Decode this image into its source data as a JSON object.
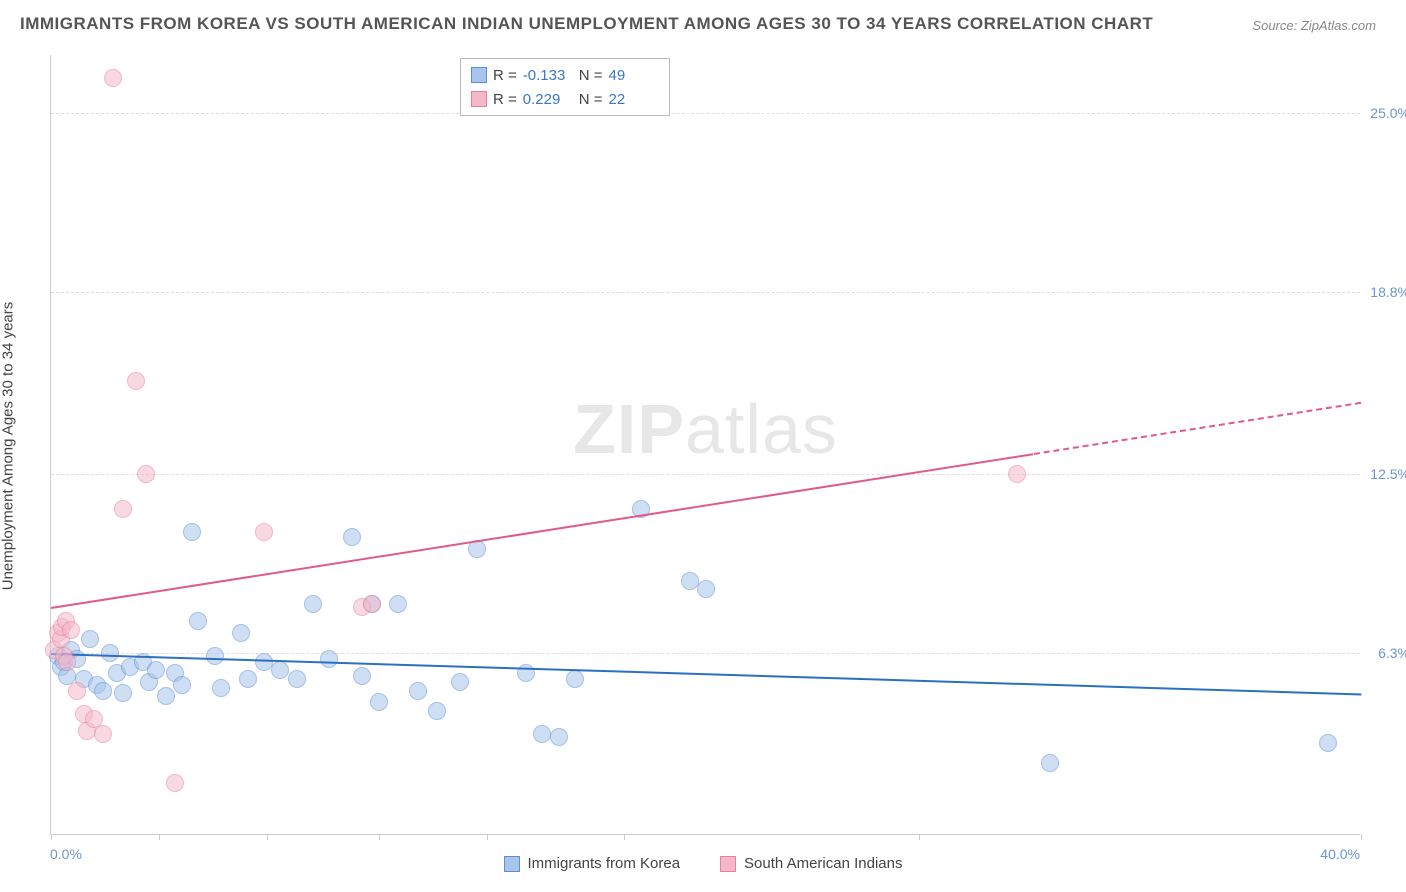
{
  "title": "IMMIGRANTS FROM KOREA VS SOUTH AMERICAN INDIAN UNEMPLOYMENT AMONG AGES 30 TO 34 YEARS CORRELATION CHART",
  "source_label": "Source:",
  "source_value": "ZipAtlas.com",
  "watermark_a": "ZIP",
  "watermark_b": "atlas",
  "chart": {
    "type": "scatter",
    "ylabel": "Unemployment Among Ages 30 to 34 years",
    "xlim": [
      0,
      40
    ],
    "ylim": [
      0,
      27
    ],
    "xtick_positions": [
      0,
      3.3,
      6.6,
      10,
      13.3,
      17.5,
      26.5,
      40
    ],
    "x_start_label": "0.0%",
    "x_end_label": "40.0%",
    "yticks": [
      {
        "v": 6.3,
        "label": "6.3%"
      },
      {
        "v": 12.5,
        "label": "12.5%"
      },
      {
        "v": 18.8,
        "label": "18.8%"
      },
      {
        "v": 25.0,
        "label": "25.0%"
      }
    ],
    "background_color": "#ffffff",
    "grid_color": "#dddddd",
    "axis_color": "#cccccc",
    "tick_label_color": "#6b95d4",
    "point_radius": 9,
    "point_opacity": 0.55,
    "series": [
      {
        "name": "Immigrants from Korea",
        "fill": "#a7c5ec",
        "stroke": "#5a8fd6",
        "trend_color": "#2d6fc1",
        "r": -0.133,
        "n": 49,
        "trend": {
          "x1": 0,
          "y1": 6.3,
          "x2": 40,
          "y2": 4.9,
          "dashed_from": 40
        },
        "points": [
          [
            0.2,
            6.2
          ],
          [
            0.3,
            5.8
          ],
          [
            0.4,
            6.0
          ],
          [
            0.5,
            5.5
          ],
          [
            0.6,
            6.4
          ],
          [
            0.8,
            6.1
          ],
          [
            1.0,
            5.4
          ],
          [
            1.2,
            6.8
          ],
          [
            1.4,
            5.2
          ],
          [
            1.6,
            5.0
          ],
          [
            1.8,
            6.3
          ],
          [
            2.0,
            5.6
          ],
          [
            2.2,
            4.9
          ],
          [
            2.4,
            5.8
          ],
          [
            2.8,
            6.0
          ],
          [
            3.0,
            5.3
          ],
          [
            3.2,
            5.7
          ],
          [
            3.5,
            4.8
          ],
          [
            3.8,
            5.6
          ],
          [
            4.0,
            5.2
          ],
          [
            4.3,
            10.5
          ],
          [
            4.5,
            7.4
          ],
          [
            5.0,
            6.2
          ],
          [
            5.2,
            5.1
          ],
          [
            5.8,
            7.0
          ],
          [
            6.0,
            5.4
          ],
          [
            6.5,
            6.0
          ],
          [
            7.0,
            5.7
          ],
          [
            7.5,
            5.4
          ],
          [
            8.0,
            8.0
          ],
          [
            8.5,
            6.1
          ],
          [
            9.2,
            10.3
          ],
          [
            9.5,
            5.5
          ],
          [
            9.8,
            8.0
          ],
          [
            10.0,
            4.6
          ],
          [
            10.6,
            8.0
          ],
          [
            11.2,
            5.0
          ],
          [
            11.8,
            4.3
          ],
          [
            12.5,
            5.3
          ],
          [
            13.0,
            9.9
          ],
          [
            14.5,
            5.6
          ],
          [
            15.0,
            3.5
          ],
          [
            15.5,
            3.4
          ],
          [
            16.0,
            5.4
          ],
          [
            18.0,
            11.3
          ],
          [
            19.5,
            8.8
          ],
          [
            20.0,
            8.5
          ],
          [
            30.5,
            2.5
          ],
          [
            39.0,
            3.2
          ]
        ]
      },
      {
        "name": "South American Indians",
        "fill": "#f4b9c9",
        "stroke": "#e97ea0",
        "trend_color": "#e05a8a",
        "r": 0.229,
        "n": 22,
        "trend": {
          "x1": 0,
          "y1": 7.9,
          "x2": 40,
          "y2": 15.0,
          "dashed_from": 30
        },
        "points": [
          [
            0.1,
            6.4
          ],
          [
            0.2,
            7.0
          ],
          [
            0.3,
            6.8
          ],
          [
            0.35,
            7.2
          ],
          [
            0.4,
            6.2
          ],
          [
            0.45,
            7.4
          ],
          [
            0.5,
            6.0
          ],
          [
            0.6,
            7.1
          ],
          [
            0.8,
            5.0
          ],
          [
            1.0,
            4.2
          ],
          [
            1.1,
            3.6
          ],
          [
            1.3,
            4.0
          ],
          [
            1.6,
            3.5
          ],
          [
            1.9,
            26.2
          ],
          [
            2.2,
            11.3
          ],
          [
            2.6,
            15.7
          ],
          [
            2.9,
            12.5
          ],
          [
            3.8,
            1.8
          ],
          [
            6.5,
            10.5
          ],
          [
            9.5,
            7.9
          ],
          [
            9.8,
            8.0
          ],
          [
            29.5,
            12.5
          ]
        ]
      }
    ]
  },
  "legend_top": {
    "r_label": "R =",
    "n_label": "N ="
  }
}
